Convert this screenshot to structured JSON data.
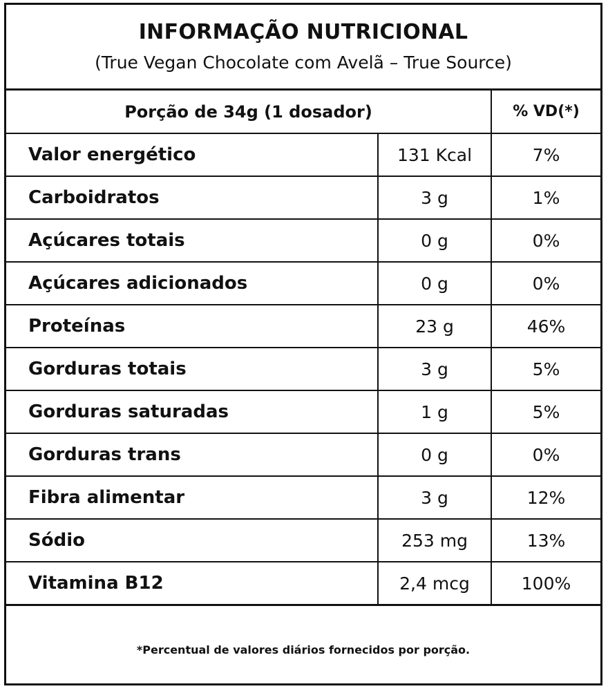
{
  "label": {
    "title": "INFORMAÇÃO NUTRICIONAL",
    "subtitle": "(True Vegan Chocolate com Avelã – True Source)",
    "header": {
      "portion": "Porção de 34g (1 dosador)",
      "vd": "% VD(*)"
    },
    "rows": [
      {
        "name": "Valor energético",
        "amount": "131 Kcal",
        "vd": "7%"
      },
      {
        "name": "Carboidratos",
        "amount": "3 g",
        "vd": "1%"
      },
      {
        "name": "Açúcares totais",
        "amount": "0 g",
        "vd": "0%"
      },
      {
        "name": "Açúcares adicionados",
        "amount": "0 g",
        "vd": "0%"
      },
      {
        "name": "Proteínas",
        "amount": "23 g",
        "vd": "46%"
      },
      {
        "name": "Gorduras totais",
        "amount": "3 g",
        "vd": "5%"
      },
      {
        "name": "Gorduras saturadas",
        "amount": "1 g",
        "vd": "5%"
      },
      {
        "name": "Gorduras trans",
        "amount": "0 g",
        "vd": "0%"
      },
      {
        "name": "Fibra alimentar",
        "amount": "3 g",
        "vd": "12%"
      },
      {
        "name": "Sódio",
        "amount": "253 mg",
        "vd": "13%"
      },
      {
        "name": "Vitamina B12",
        "amount": "2,4 mcg",
        "vd": "100%"
      }
    ],
    "footnote": "*Percentual de valores diários fornecidos por porção."
  }
}
